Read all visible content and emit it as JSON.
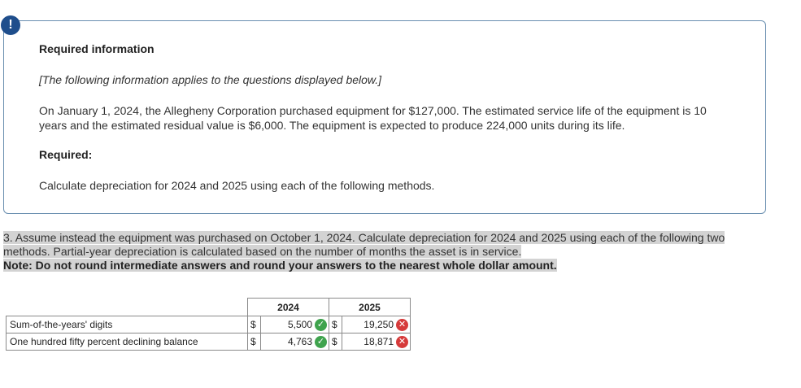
{
  "alert_symbol": "!",
  "info": {
    "title": "Required information",
    "italic_note": "[The following information applies to the questions displayed below.]",
    "body": "On January 1, 2024, the Allegheny Corporation purchased equipment for $127,000. The estimated service life of the equipment is 10 years and the estimated residual value is $6,000. The equipment is expected to produce 224,000 units during its life.",
    "required_label": "Required:",
    "instruction": "Calculate depreciation for 2024 and 2025 using each of the following methods."
  },
  "question": {
    "text": "3. Assume instead the equipment was purchased on October 1, 2024. Calculate depreciation for 2024 and 2025 using each of the following two methods. Partial-year depreciation is calculated based on the number of months the asset is in service.",
    "note": "Note: Do not round intermediate answers and round your answers to the nearest whole dollar amount."
  },
  "table": {
    "headers": [
      "2024",
      "2025"
    ],
    "currency": "$",
    "rows": [
      {
        "label": "Sum-of-the-years' digits",
        "v2024": "5,500",
        "v2024_status": "correct",
        "v2025": "19,250",
        "v2025_status": "incorrect"
      },
      {
        "label": "One hundred fifty percent declining balance",
        "v2024": "4,763",
        "v2024_status": "correct",
        "v2025": "18,871",
        "v2025_status": "incorrect"
      }
    ]
  },
  "icons": {
    "correct": "check-circle-icon",
    "incorrect": "x-circle-icon"
  },
  "colors": {
    "accent": "#1f4e8c",
    "correct": "#3fa34d",
    "incorrect": "#d63a3a",
    "highlight": "#d3d3d3"
  }
}
